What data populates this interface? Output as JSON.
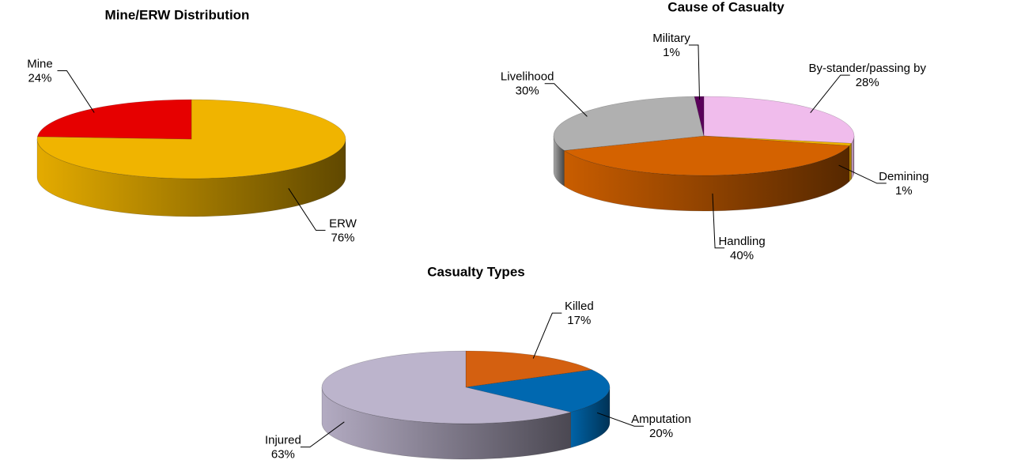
{
  "chart_data": [
    {
      "type": "pie",
      "title": "Mine/ERW Distribution",
      "categories": [
        "ERW",
        "Mine"
      ],
      "values": [
        76,
        24
      ],
      "value_labels": [
        "76%",
        "24%"
      ],
      "colors": [
        "#f0b400",
        "#e60000"
      ]
    },
    {
      "type": "pie",
      "title": "Cause of Casualty",
      "categories": [
        "By-stander/passing by",
        "Demining",
        "Handling",
        "Livelihood",
        "Military"
      ],
      "values": [
        28,
        1,
        40,
        30,
        1
      ],
      "value_labels": [
        "28%",
        "1%",
        "40%",
        "30%",
        "1%"
      ],
      "colors": [
        "#f0bcec",
        "#f0b400",
        "#d46200",
        "#b0b0b0",
        "#5a005a"
      ]
    },
    {
      "type": "pie",
      "title": "Casualty Types",
      "categories": [
        "Killed",
        "Amputation",
        "Injured"
      ],
      "values": [
        17,
        20,
        63
      ],
      "value_labels": [
        "17%",
        "20%",
        "63%"
      ],
      "colors": [
        "#d46010",
        "#0068b0",
        "#bcb4cc"
      ]
    }
  ]
}
